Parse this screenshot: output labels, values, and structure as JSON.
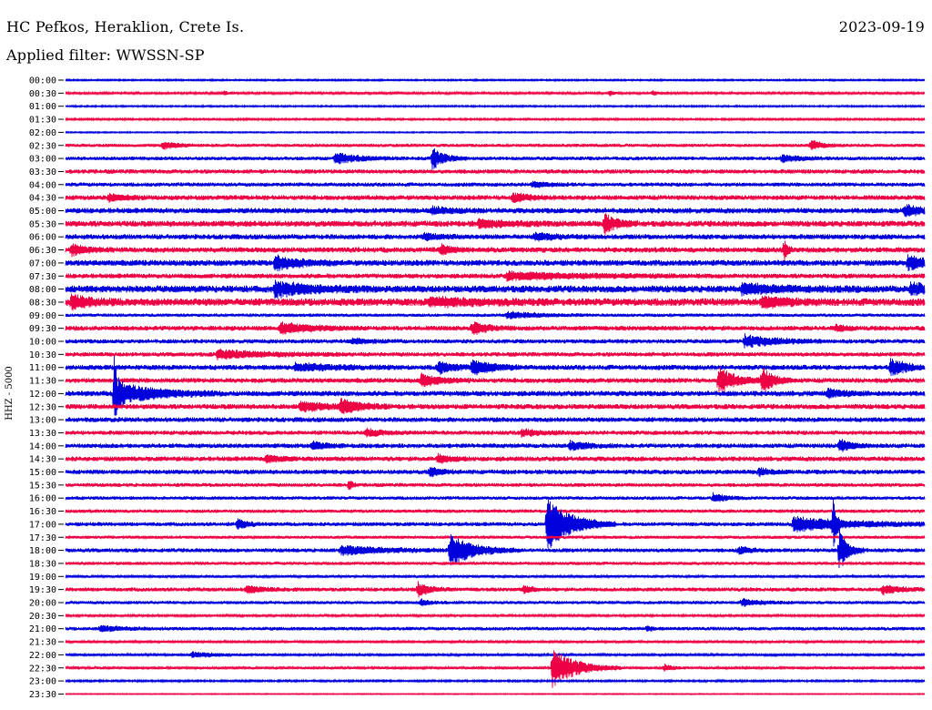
{
  "header": {
    "station": "HC Pefkos, Heraklion, Crete Is.",
    "date": "2023-09-19",
    "filter_label": "Applied filter: WWSSN-SP"
  },
  "channel_label": "HHZ - 5000",
  "colors": {
    "even_row": "#0000dd",
    "odd_row": "#ee0044"
  },
  "chart_data": {
    "type": "line",
    "title": "HC Pefkos, Heraklion, Crete Is.",
    "ylabel": "HHZ - 5000",
    "rows": [
      "00:00",
      "00:30",
      "01:00",
      "01:30",
      "02:00",
      "02:30",
      "03:00",
      "03:30",
      "04:00",
      "04:30",
      "05:00",
      "05:30",
      "06:00",
      "06:30",
      "07:00",
      "07:30",
      "08:00",
      "08:30",
      "09:00",
      "09:30",
      "10:00",
      "10:30",
      "11:00",
      "11:30",
      "12:00",
      "12:30",
      "13:00",
      "13:30",
      "14:00",
      "14:30",
      "15:00",
      "15:30",
      "16:00",
      "16:30",
      "17:00",
      "17:30",
      "18:00",
      "18:30",
      "19:00",
      "19:30",
      "20:00",
      "20:30",
      "21:00",
      "21:30",
      "22:00",
      "22:30",
      "23:00",
      "23:30"
    ],
    "noise": [
      0.6,
      0.8,
      0.6,
      0.7,
      0.5,
      1.2,
      1.4,
      1.6,
      1.5,
      1.8,
      2.0,
      2.2,
      1.9,
      2.0,
      2.2,
      1.8,
      2.6,
      2.8,
      1.2,
      1.8,
      1.6,
      1.6,
      1.9,
      1.8,
      2.0,
      1.9,
      1.8,
      1.6,
      1.7,
      1.8,
      1.7,
      1.4,
      1.3,
      1.3,
      1.5,
      1.1,
      1.5,
      1.2,
      1.0,
      1.5,
      1.2,
      0.8,
      1.3,
      0.9,
      0.9,
      1.0,
      0.7,
      0.4
    ],
    "events": [
      {
        "row": 1,
        "minute": 5.5,
        "amp": 3,
        "dur": 0.15
      },
      {
        "row": 1,
        "minute": 19,
        "amp": 3,
        "dur": 0.15
      },
      {
        "row": 1,
        "minute": 20.5,
        "amp": 3,
        "dur": 0.15
      },
      {
        "row": 5,
        "minute": 3.4,
        "amp": 4,
        "dur": 0.5
      },
      {
        "row": 5,
        "minute": 26,
        "amp": 6,
        "dur": 0.4
      },
      {
        "row": 6,
        "minute": 9.4,
        "amp": 6,
        "dur": 0.8
      },
      {
        "row": 6,
        "minute": 12.8,
        "amp": 12,
        "dur": 0.4
      },
      {
        "row": 6,
        "minute": 25,
        "amp": 4,
        "dur": 0.6
      },
      {
        "row": 8,
        "minute": 16.3,
        "amp": 3,
        "dur": 0.5
      },
      {
        "row": 9,
        "minute": 1.5,
        "amp": 4,
        "dur": 0.5
      },
      {
        "row": 9,
        "minute": 15.6,
        "amp": 5,
        "dur": 0.6
      },
      {
        "row": 10,
        "minute": 12.8,
        "amp": 4,
        "dur": 0.6
      },
      {
        "row": 10,
        "minute": 29.3,
        "amp": 7,
        "dur": 0.5
      },
      {
        "row": 11,
        "minute": 18.8,
        "amp": 12,
        "dur": 0.4
      },
      {
        "row": 11,
        "minute": 14.4,
        "amp": 4,
        "dur": 1.0
      },
      {
        "row": 12,
        "minute": 12.5,
        "amp": 3,
        "dur": 0.6
      },
      {
        "row": 12,
        "minute": 16.4,
        "amp": 4,
        "dur": 0.6
      },
      {
        "row": 13,
        "minute": 0.2,
        "amp": 6,
        "dur": 0.5
      },
      {
        "row": 13,
        "minute": 13.1,
        "amp": 5,
        "dur": 0.4
      },
      {
        "row": 13,
        "minute": 25.1,
        "amp": 16,
        "dur": 0.1
      },
      {
        "row": 14,
        "minute": 7.3,
        "amp": 8,
        "dur": 0.8
      },
      {
        "row": 14,
        "minute": 29.4,
        "amp": 8,
        "dur": 0.6
      },
      {
        "row": 15,
        "minute": 15.4,
        "amp": 4,
        "dur": 2.5
      },
      {
        "row": 16,
        "minute": 7.3,
        "amp": 8,
        "dur": 1.2
      },
      {
        "row": 16,
        "minute": 23.6,
        "amp": 5,
        "dur": 1.4
      },
      {
        "row": 16,
        "minute": 29.5,
        "amp": 7,
        "dur": 0.6
      },
      {
        "row": 17,
        "minute": 0.2,
        "amp": 8,
        "dur": 0.6
      },
      {
        "row": 17,
        "minute": 24.3,
        "amp": 6,
        "dur": 0.8
      },
      {
        "row": 17,
        "minute": 12.7,
        "amp": 4,
        "dur": 1.5
      },
      {
        "row": 18,
        "minute": 15.4,
        "amp": 4,
        "dur": 1.0
      },
      {
        "row": 19,
        "minute": 7.5,
        "amp": 6,
        "dur": 1.0
      },
      {
        "row": 19,
        "minute": 14.2,
        "amp": 7,
        "dur": 0.5
      },
      {
        "row": 19,
        "minute": 26.9,
        "amp": 4,
        "dur": 0.3
      },
      {
        "row": 20,
        "minute": 10.0,
        "amp": 3,
        "dur": 0.6
      },
      {
        "row": 20,
        "minute": 23.7,
        "amp": 7,
        "dur": 1.0
      },
      {
        "row": 21,
        "minute": 5.3,
        "amp": 5,
        "dur": 1.5
      },
      {
        "row": 22,
        "minute": 8.0,
        "amp": 4,
        "dur": 1.2
      },
      {
        "row": 22,
        "minute": 13.0,
        "amp": 7,
        "dur": 0.5
      },
      {
        "row": 22,
        "minute": 14.2,
        "amp": 10,
        "dur": 0.6
      },
      {
        "row": 22,
        "minute": 28.8,
        "amp": 10,
        "dur": 0.5
      },
      {
        "row": 23,
        "minute": 12.4,
        "amp": 7,
        "dur": 0.6
      },
      {
        "row": 23,
        "minute": 22.8,
        "amp": 14,
        "dur": 0.6
      },
      {
        "row": 23,
        "minute": 24.3,
        "amp": 14,
        "dur": 0.4
      },
      {
        "row": 24,
        "minute": 1.7,
        "amp": 60,
        "dur": 0.1
      },
      {
        "row": 24,
        "minute": 1.9,
        "amp": 12,
        "dur": 1.2
      },
      {
        "row": 24,
        "minute": 26.6,
        "amp": 5,
        "dur": 0.5
      },
      {
        "row": 25,
        "minute": 8.2,
        "amp": 5,
        "dur": 1.0
      },
      {
        "row": 25,
        "minute": 9.6,
        "amp": 8,
        "dur": 0.6
      },
      {
        "row": 27,
        "minute": 10.5,
        "amp": 4,
        "dur": 0.6
      },
      {
        "row": 27,
        "minute": 15.9,
        "amp": 4,
        "dur": 0.6
      },
      {
        "row": 28,
        "minute": 8.6,
        "amp": 5,
        "dur": 0.4
      },
      {
        "row": 28,
        "minute": 17.6,
        "amp": 5,
        "dur": 0.6
      },
      {
        "row": 28,
        "minute": 27.0,
        "amp": 7,
        "dur": 0.4
      },
      {
        "row": 29,
        "minute": 7.0,
        "amp": 5,
        "dur": 0.4
      },
      {
        "row": 29,
        "minute": 13.0,
        "amp": 5,
        "dur": 0.4
      },
      {
        "row": 30,
        "minute": 12.7,
        "amp": 5,
        "dur": 0.4
      },
      {
        "row": 30,
        "minute": 24.2,
        "amp": 4,
        "dur": 0.4
      },
      {
        "row": 31,
        "minute": 9.9,
        "amp": 8,
        "dur": 0.1
      },
      {
        "row": 32,
        "minute": 22.6,
        "amp": 5,
        "dur": 0.4
      },
      {
        "row": 34,
        "minute": 6.0,
        "amp": 6,
        "dur": 0.3
      },
      {
        "row": 34,
        "minute": 16.8,
        "amp": 30,
        "dur": 0.8
      },
      {
        "row": 34,
        "minute": 25.4,
        "amp": 8,
        "dur": 2.0
      },
      {
        "row": 34,
        "minute": 26.8,
        "amp": 28,
        "dur": 0.1
      },
      {
        "row": 36,
        "minute": 9.6,
        "amp": 5,
        "dur": 1.5
      },
      {
        "row": 36,
        "minute": 13.4,
        "amp": 18,
        "dur": 0.8
      },
      {
        "row": 36,
        "minute": 23.5,
        "amp": 4,
        "dur": 0.4
      },
      {
        "row": 36,
        "minute": 27.0,
        "amp": 25,
        "dur": 0.3
      },
      {
        "row": 39,
        "minute": 12.3,
        "amp": 8,
        "dur": 0.4
      },
      {
        "row": 39,
        "minute": 6.3,
        "amp": 4,
        "dur": 0.6
      },
      {
        "row": 39,
        "minute": 16.0,
        "amp": 4,
        "dur": 0.3
      },
      {
        "row": 39,
        "minute": 28.5,
        "amp": 5,
        "dur": 0.6
      },
      {
        "row": 40,
        "minute": 12.4,
        "amp": 4,
        "dur": 0.3
      },
      {
        "row": 40,
        "minute": 23.6,
        "amp": 4,
        "dur": 0.6
      },
      {
        "row": 42,
        "minute": 1.2,
        "amp": 3,
        "dur": 0.8
      },
      {
        "row": 42,
        "minute": 20.3,
        "amp": 3,
        "dur": 0.2
      },
      {
        "row": 44,
        "minute": 4.4,
        "amp": 3,
        "dur": 1.0
      },
      {
        "row": 45,
        "minute": 17.0,
        "amp": 22,
        "dur": 0.8
      },
      {
        "row": 45,
        "minute": 20.9,
        "amp": 4,
        "dur": 0.3
      }
    ]
  }
}
